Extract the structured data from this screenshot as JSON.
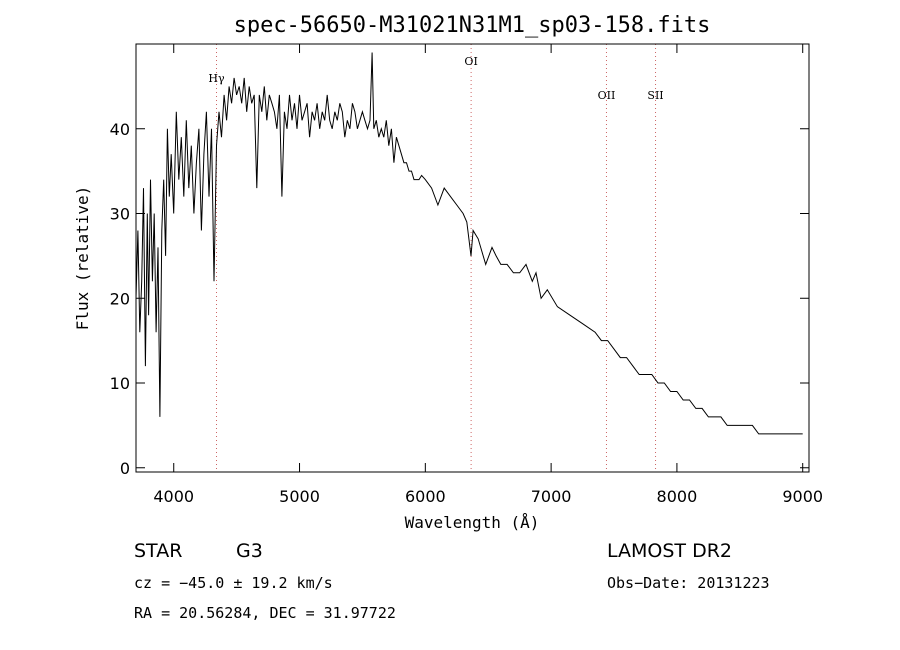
{
  "chart_data": {
    "type": "line",
    "title": "spec-56650-M31021N31M1_sp03-158.fits",
    "xlabel": "Wavelength (Å)",
    "ylabel": "Flux (relative)",
    "xlim": [
      3700,
      9050
    ],
    "ylim": [
      -0.5,
      50
    ],
    "x_ticks": [
      4000,
      5000,
      6000,
      7000,
      8000,
      9000
    ],
    "y_ticks": [
      0,
      10,
      20,
      30,
      40
    ],
    "grid": false,
    "line_markers": [
      {
        "label": "Hγ",
        "x": 4340,
        "label_y": 45.5
      },
      {
        "label": "OI",
        "x": 6364,
        "label_y": 47.5
      },
      {
        "label": "OII",
        "x": 7440,
        "label_y": 43.5
      },
      {
        "label": "SII",
        "x": 7830,
        "label_y": 43.5
      }
    ],
    "series": [
      {
        "x": [
          3700,
          3715,
          3730,
          3745,
          3760,
          3775,
          3790,
          3800,
          3815,
          3830,
          3845,
          3860,
          3875,
          3890,
          3905,
          3920,
          3935,
          3950,
          3965,
          3980,
          4000,
          4020,
          4040,
          4060,
          4080,
          4100,
          4120,
          4140,
          4160,
          4180,
          4200,
          4220,
          4240,
          4260,
          4280,
          4300,
          4320,
          4340,
          4360,
          4380,
          4400,
          4420,
          4440,
          4460,
          4480,
          4500,
          4520,
          4540,
          4560,
          4580,
          4600,
          4620,
          4640,
          4660,
          4680,
          4700,
          4720,
          4740,
          4760,
          4780,
          4800,
          4820,
          4840,
          4860,
          4880,
          4900,
          4920,
          4940,
          4960,
          4980,
          5000,
          5020,
          5040,
          5060,
          5080,
          5100,
          5120,
          5140,
          5160,
          5180,
          5200,
          5220,
          5240,
          5260,
          5280,
          5300,
          5320,
          5340,
          5360,
          5380,
          5400,
          5420,
          5440,
          5460,
          5480,
          5500,
          5520,
          5540,
          5560,
          5577,
          5590,
          5610,
          5630,
          5650,
          5670,
          5690,
          5710,
          5730,
          5750,
          5770,
          5790,
          5810,
          5830,
          5850,
          5870,
          5890,
          5910,
          5930,
          5950,
          5970,
          6000,
          6050,
          6100,
          6150,
          6200,
          6250,
          6300,
          6330,
          6363,
          6380,
          6420,
          6480,
          6530,
          6563,
          6600,
          6650,
          6700,
          6750,
          6800,
          6850,
          6880,
          6920,
          6970,
          7050,
          7150,
          7250,
          7350,
          7400,
          7450,
          7500,
          7550,
          7600,
          7650,
          7700,
          7750,
          7800,
          7850,
          7900,
          7950,
          8000,
          8050,
          8100,
          8150,
          8200,
          8250,
          8300,
          8350,
          8400,
          8450,
          8500,
          8550,
          8600,
          8650,
          8700,
          8750,
          8800,
          8850,
          8900,
          8950,
          9000
        ],
        "y": [
          20,
          28,
          16,
          22,
          33,
          12,
          30,
          18,
          34,
          22,
          30,
          16,
          26,
          6,
          28,
          34,
          25,
          40,
          32,
          37,
          30,
          42,
          34,
          39,
          32,
          41,
          33,
          38,
          30,
          36,
          40,
          28,
          37,
          42,
          32,
          40,
          22,
          38,
          42,
          39,
          44,
          41,
          45,
          43,
          46,
          44,
          45,
          43,
          46,
          42,
          45,
          43,
          44,
          33,
          44,
          42,
          45,
          41,
          44,
          43,
          42,
          40,
          44,
          32,
          42,
          40,
          44,
          41,
          43,
          40,
          44,
          41,
          42,
          43,
          39,
          42,
          41,
          43,
          40,
          42,
          41,
          44,
          41,
          40,
          42,
          41,
          43,
          42,
          39,
          41,
          40,
          43,
          42,
          40,
          41,
          42,
          41,
          40,
          41,
          49,
          40,
          41,
          39,
          40,
          39,
          41,
          38,
          40,
          36,
          39,
          38,
          37,
          36,
          36,
          35,
          35,
          34,
          34,
          34,
          34.5,
          34,
          33,
          31,
          33,
          32,
          31,
          30,
          29,
          25,
          28,
          27,
          24,
          26,
          25,
          24,
          24,
          23,
          23,
          24,
          22,
          23,
          20,
          21,
          19,
          18,
          17,
          16,
          15,
          15,
          14,
          13,
          13,
          12,
          11,
          11,
          11,
          10,
          10,
          9,
          9,
          8,
          8,
          7,
          7,
          6,
          6,
          6,
          5,
          5,
          5,
          5,
          5,
          4,
          4,
          4,
          4,
          4,
          4,
          4,
          4
        ]
      }
    ]
  },
  "info": {
    "object_type": "STAR",
    "subclass": "G3",
    "survey": "LAMOST DR2",
    "cz": "cz = −45.0 ± 19.2 km/s",
    "obs_date": "Obs−Date: 20131223",
    "coords": "RA =  20.56284, DEC =  31.97722"
  }
}
